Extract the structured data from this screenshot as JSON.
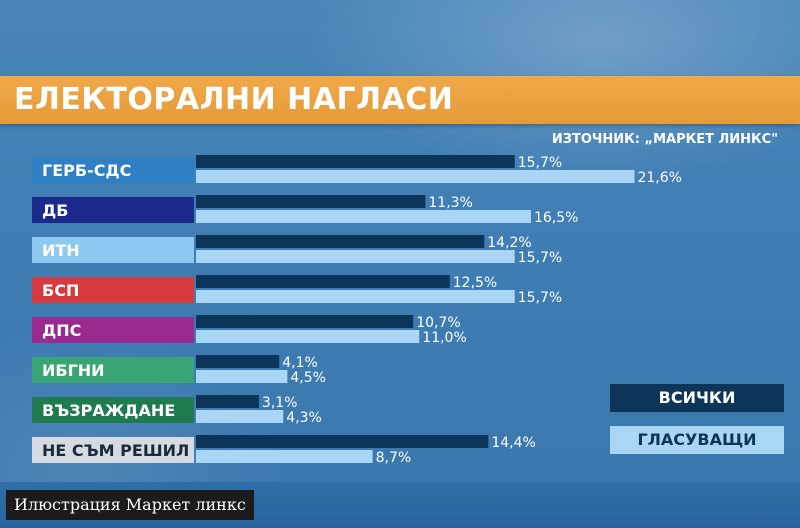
{
  "chart_data": {
    "type": "bar",
    "title": "ЕЛЕКТОРАЛНИ НАГЛАСИ",
    "source": "ИЗТОЧНИК: „МАРКЕТ ЛИНКС\"",
    "categories": [
      "ГЕРБ-СДС",
      "ДБ",
      "ИТН",
      "БСП",
      "ДПС",
      "ИБГНИ",
      "ВЪЗРАЖДАНЕ",
      "НЕ СЪМ РЕШИЛ"
    ],
    "category_colors": [
      "#2f7fc4",
      "#1b2a8c",
      "#8cc8f0",
      "#d63a3f",
      "#9a2a8e",
      "#3aa574",
      "#1f7a4e",
      "#d6dbe1"
    ],
    "category_text_colors": [
      "#ffffff",
      "#ffffff",
      "#ffffff",
      "#ffffff",
      "#ffffff",
      "#ffffff",
      "#ffffff",
      "#1a2a3a"
    ],
    "series": [
      {
        "name": "ВСИЧКИ",
        "color": "#0d3559",
        "values": [
          15.7,
          11.3,
          14.2,
          12.5,
          10.7,
          4.1,
          3.1,
          14.4
        ],
        "labels": [
          "15,7%",
          "11,3%",
          "14,2%",
          "12,5%",
          "10,7%",
          "4,1%",
          "3,1%",
          "14,4%"
        ]
      },
      {
        "name": "ГЛАСУВАЩИ",
        "color": "#a9d6f5",
        "values": [
          21.6,
          16.5,
          15.7,
          15.7,
          11.0,
          4.5,
          4.3,
          8.7
        ],
        "labels": [
          "21,6%",
          "16,5%",
          "15,7%",
          "15,7%",
          "11,0%",
          "4,5%",
          "4,3%",
          "8,7%"
        ]
      }
    ],
    "legend_position": "bottom-right",
    "grid": false
  },
  "caption": "Илюстрация Маркет линкс"
}
